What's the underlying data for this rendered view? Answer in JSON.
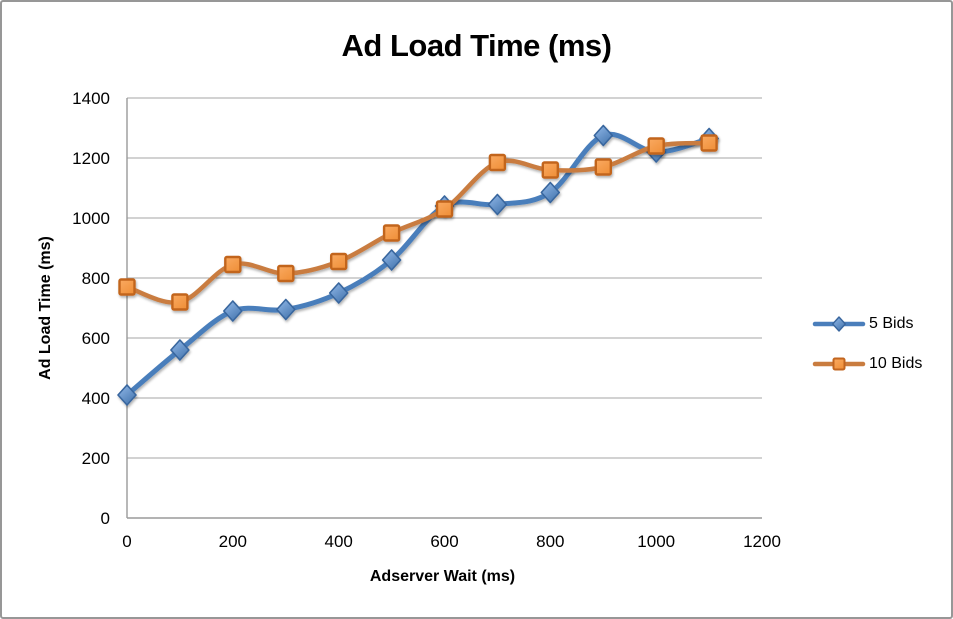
{
  "chart_data": {
    "type": "line",
    "title": "Ad Load Time (ms)",
    "xlabel": "Adserver Wait (ms)",
    "ylabel": "Ad Load Time (ms)",
    "x": [
      0,
      100,
      200,
      300,
      400,
      500,
      600,
      700,
      800,
      900,
      1000,
      1100
    ],
    "series": [
      {
        "name": "5 Bids",
        "values": [
          410,
          560,
          690,
          695,
          750,
          860,
          1040,
          1045,
          1085,
          1275,
          1220,
          1265
        ],
        "color": "#4A7EBB",
        "marker": "diamond",
        "marker_fill": "#4878B0",
        "marker_fill_light": "#93BAEA",
        "marker_stroke": "#39669E",
        "line_width": 5
      },
      {
        "name": "10 Bids",
        "values": [
          770,
          720,
          845,
          815,
          855,
          950,
          1030,
          1185,
          1160,
          1170,
          1240,
          1250
        ],
        "color": "#C97C3F",
        "marker": "square",
        "marker_fill": "#F0913B",
        "marker_fill_light": "#FAAA62",
        "marker_stroke": "#C2651F",
        "line_width": 4.5
      }
    ],
    "xlim": [
      0,
      1200
    ],
    "ylim": [
      0,
      1400
    ],
    "x_ticks": [
      0,
      200,
      400,
      600,
      800,
      1000,
      1200
    ],
    "y_ticks": [
      0,
      200,
      400,
      600,
      800,
      1000,
      1200,
      1400
    ],
    "grid": true,
    "smoothed": true,
    "legend_position": "right",
    "gridline_color": "#A6A6A6",
    "axis_color": "#9A9A9A",
    "text_color": "#000000",
    "background": "#FFFFFF",
    "frame_border_color": "#979797"
  }
}
